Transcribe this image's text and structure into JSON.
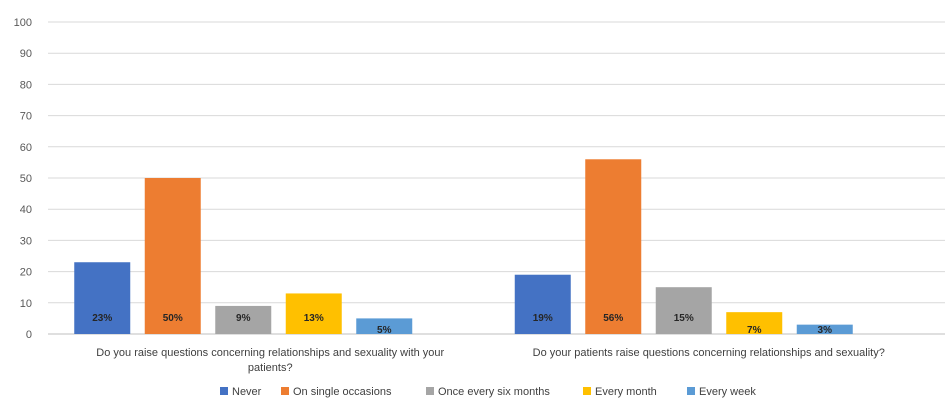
{
  "chart_data": {
    "type": "bar",
    "categories": [
      [
        "Do you raise questions concerning relationships and sexuality with your",
        "patients?"
      ],
      [
        "Do your patients raise questions concerning relationships and sexuality?"
      ]
    ],
    "series": [
      {
        "name": "Never",
        "color": "#4472C4",
        "values": [
          23,
          19
        ],
        "labels": [
          "23%",
          "19%"
        ]
      },
      {
        "name": "On single occasions",
        "color": "#ED7D31",
        "values": [
          50,
          56
        ],
        "labels": [
          "50%",
          "56%"
        ]
      },
      {
        "name": "Once every six months",
        "color": "#A5A5A5",
        "values": [
          9,
          15
        ],
        "labels": [
          "9%",
          "15%"
        ]
      },
      {
        "name": "Every month",
        "color": "#FFC000",
        "values": [
          13,
          7
        ],
        "labels": [
          "13%",
          "7%"
        ]
      },
      {
        "name": "Every week",
        "color": "#5B9BD5",
        "values": [
          5,
          3
        ],
        "labels": [
          "5%",
          "3%"
        ]
      }
    ],
    "yticks": [
      0,
      10,
      20,
      30,
      40,
      50,
      60,
      70,
      80,
      90,
      100
    ],
    "ylim": [
      0,
      100
    ],
    "grid": true,
    "legend": "bottom"
  }
}
